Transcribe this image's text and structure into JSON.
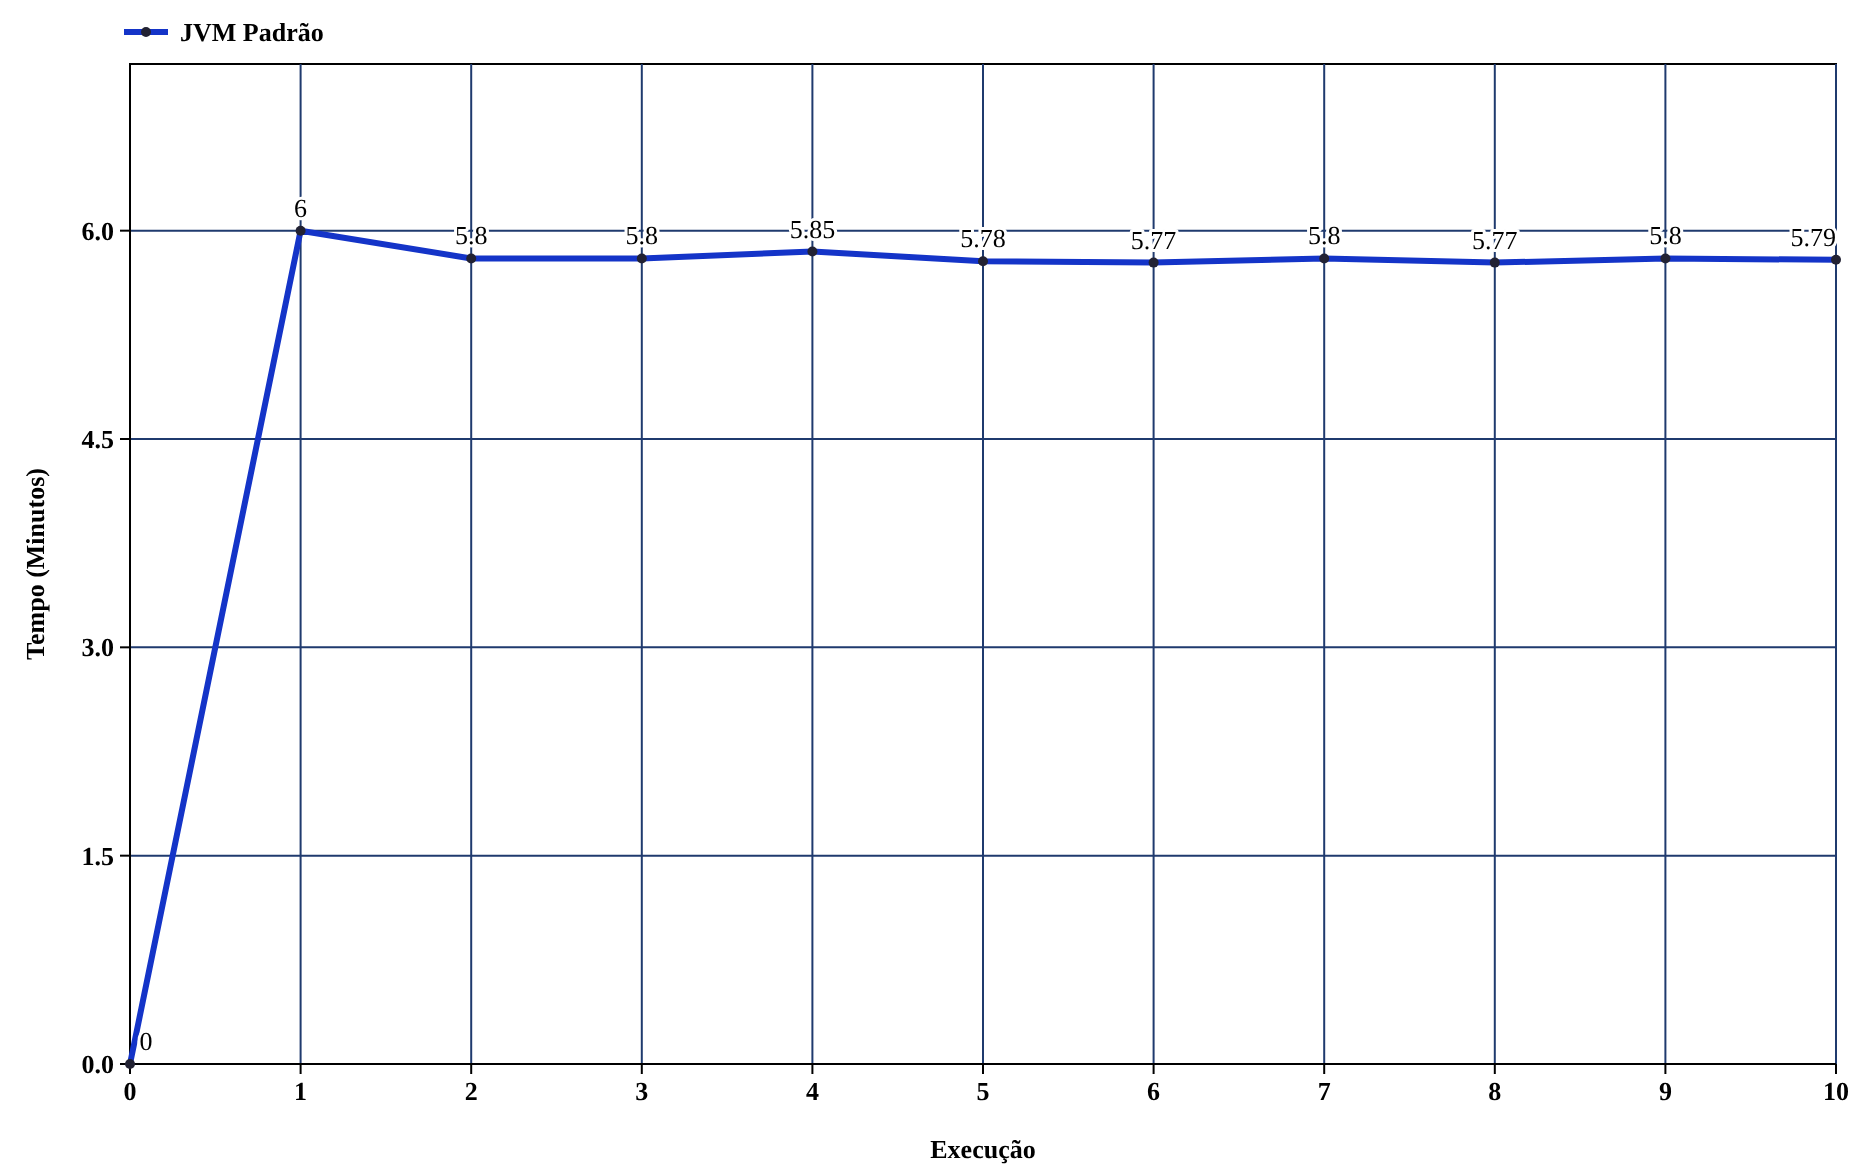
{
  "chart_data": {
    "type": "line",
    "xlabel": "Execução",
    "ylabel": "Tempo (Minutos)",
    "x": [
      0,
      1,
      2,
      3,
      4,
      5,
      6,
      7,
      8,
      9,
      10
    ],
    "series": [
      {
        "name": "JVM Padrão",
        "color": "#1434c8",
        "values": [
          0,
          6,
          5.8,
          5.8,
          5.85,
          5.78,
          5.77,
          5.8,
          5.77,
          5.8,
          5.79
        ]
      }
    ],
    "xlim": [
      0,
      10
    ],
    "xticks": [
      0,
      1,
      2,
      3,
      4,
      5,
      6,
      7,
      8,
      9,
      10
    ],
    "ylim": [
      0,
      7.2
    ],
    "yticks": [
      {
        "value": 0,
        "label": "0.0"
      },
      {
        "value": 1.5,
        "label": "1.5"
      },
      {
        "value": 3,
        "label": "3.0"
      },
      {
        "value": 4.5,
        "label": "4.5"
      },
      {
        "value": 6,
        "label": "6.0"
      }
    ],
    "grid": true,
    "legend": "top left",
    "marker": "circle",
    "line_style": "solid",
    "data_labels": true
  }
}
